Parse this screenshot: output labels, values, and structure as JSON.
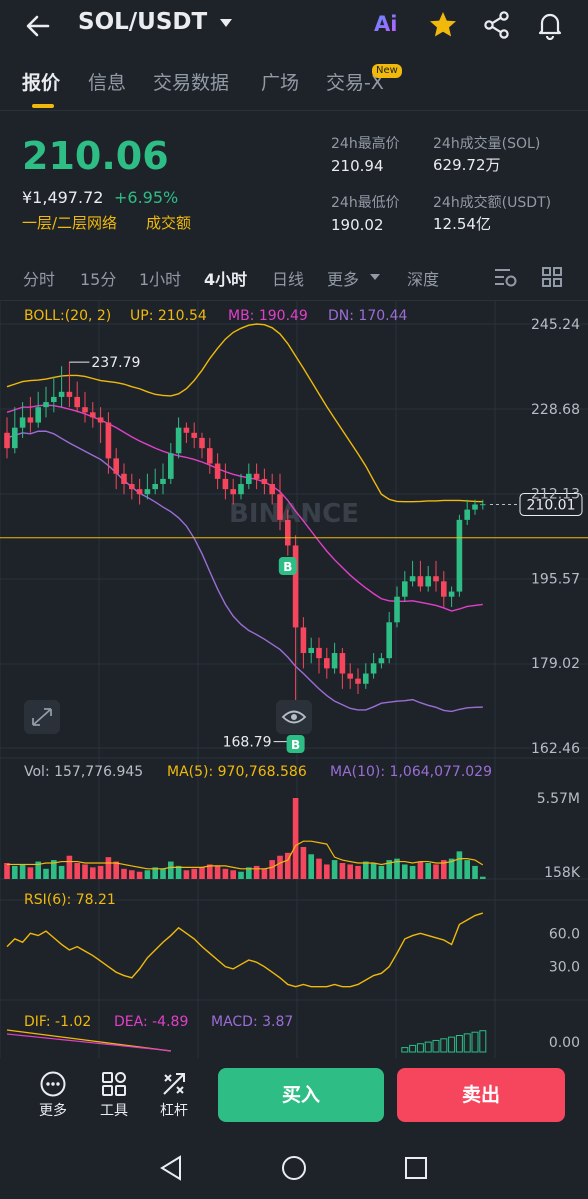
{
  "header": {
    "pair": "SOL/USDT",
    "ai_label": "Ai",
    "icons": [
      "back-arrow-icon",
      "chevron-down-icon",
      "ai-icon",
      "star-icon",
      "share-icon",
      "bell-icon"
    ]
  },
  "tabs": [
    {
      "label": "报价",
      "active": true
    },
    {
      "label": "信息"
    },
    {
      "label": "交易数据"
    },
    {
      "label": "广场"
    },
    {
      "label": "交易-X",
      "badge": "New"
    }
  ],
  "price": {
    "last": "210.06",
    "cny": "¥1,497.72",
    "change": "+6.95%",
    "grid_link": "一层/二层网络",
    "volume_link": "成交额"
  },
  "stats": {
    "high_label": "24h最高价",
    "high": "210.94",
    "low_label": "24h最低价",
    "low": "190.02",
    "vol_base_label": "24h成交量(SOL)",
    "vol_base": "629.72万",
    "vol_quote_label": "24h成交额(USDT)",
    "vol_quote": "12.54亿"
  },
  "intervals": {
    "items": [
      "分时",
      "15分",
      "1小时",
      "4小时",
      "日线",
      "更多",
      "深度"
    ],
    "active": "4小时"
  },
  "colors": {
    "up": "#2ebd85",
    "down": "#f6465d",
    "accent": "#f0b90b",
    "boll_mb": "#e040c8",
    "boll_band": "#f0b90b",
    "boll_dn": "#9b6dd6",
    "bg": "#1e2329"
  },
  "chart_data": [
    {
      "type": "candlestick",
      "title": "",
      "watermark": "BINANCE",
      "indicator": {
        "label": "BOLL:(20, 2)",
        "up": "UP: 210.54",
        "mb": "MB: 190.49",
        "dn": "DN: 170.44"
      },
      "y_ticks": [
        "245.24",
        "228.68",
        "212.13",
        "195.57",
        "179.02",
        "162.46"
      ],
      "ylim": [
        162.46,
        245.24
      ],
      "current_price": "210.01",
      "current_price_value": 210.01,
      "marked_level": 203.5,
      "high_label": "237.79",
      "low_label": "168.79",
      "trade_markers": [
        "B",
        "B"
      ],
      "candles": [
        [
          224,
          221,
          227,
          219
        ],
        [
          221,
          225,
          229,
          220
        ],
        [
          225,
          227,
          230,
          223
        ],
        [
          227,
          226,
          231,
          224
        ],
        [
          226,
          229,
          232,
          225
        ],
        [
          229,
          230,
          233,
          227
        ],
        [
          230,
          231,
          235,
          228
        ],
        [
          231,
          232,
          237,
          229
        ],
        [
          232,
          231,
          237.79,
          229
        ],
        [
          231,
          229,
          234,
          228
        ],
        [
          229,
          228,
          232,
          226
        ],
        [
          228,
          227,
          230,
          225
        ],
        [
          227,
          226,
          229,
          222
        ],
        [
          226,
          219,
          228,
          216
        ],
        [
          219,
          216,
          221,
          213
        ],
        [
          216,
          214,
          218,
          212
        ],
        [
          214,
          213,
          216,
          211
        ],
        [
          213,
          212,
          215,
          210
        ],
        [
          212,
          213,
          216,
          211
        ],
        [
          213,
          214,
          217,
          212
        ],
        [
          214,
          215,
          218,
          212
        ],
        [
          215,
          220,
          222,
          214
        ],
        [
          220,
          225,
          227,
          219
        ],
        [
          225,
          224,
          226,
          222
        ],
        [
          224,
          223,
          226,
          221
        ],
        [
          223,
          221,
          224,
          219
        ],
        [
          221,
          218,
          223,
          216
        ],
        [
          218,
          215,
          220,
          213
        ],
        [
          215,
          213,
          218,
          211
        ],
        [
          213,
          212,
          215,
          210
        ],
        [
          212,
          214,
          216,
          211
        ],
        [
          214,
          216,
          218,
          213
        ],
        [
          216,
          215,
          218,
          213
        ],
        [
          215,
          214,
          217,
          212
        ],
        [
          214,
          212,
          216,
          210
        ],
        [
          212,
          207,
          216,
          205
        ],
        [
          207,
          202,
          209,
          200
        ],
        [
          202,
          186,
          204,
          168.79
        ],
        [
          186,
          181,
          188,
          178
        ],
        [
          181,
          182,
          184,
          179
        ],
        [
          182,
          180,
          184,
          177
        ],
        [
          180,
          178,
          182,
          176
        ],
        [
          178,
          181,
          183,
          177
        ],
        [
          181,
          177,
          182,
          174
        ],
        [
          177,
          176,
          179,
          174
        ],
        [
          176,
          175,
          178,
          173
        ],
        [
          175,
          177,
          179,
          174
        ],
        [
          177,
          179,
          181,
          176
        ],
        [
          179,
          180,
          181,
          178
        ],
        [
          180,
          187,
          189,
          179
        ],
        [
          187,
          192,
          194,
          186
        ],
        [
          192,
          195,
          197,
          191
        ],
        [
          195,
          196,
          199,
          194
        ],
        [
          196,
          194,
          199,
          193
        ],
        [
          194,
          196,
          198,
          193
        ],
        [
          196,
          195,
          199,
          193
        ],
        [
          195,
          192,
          197,
          190
        ],
        [
          192,
          193,
          194,
          190
        ],
        [
          193,
          207,
          208,
          192
        ],
        [
          207,
          209,
          210.94,
          206
        ],
        [
          209,
          210,
          210.94,
          208
        ],
        [
          210,
          210.06,
          210.94,
          209
        ]
      ],
      "boll_mid": [
        228,
        228.5,
        229,
        229,
        229.3,
        229.4,
        229.3,
        229,
        228.6,
        228.2,
        227.7,
        227.1,
        226.5,
        225.8,
        225,
        224.1,
        223.2,
        222.4,
        221.7,
        221,
        220.4,
        219.9,
        219.5,
        219.2,
        218.8,
        218.3,
        217.7,
        217,
        216.4,
        215.9,
        215.5,
        215.2,
        214.9,
        214.4,
        213.6,
        212.5,
        210.8,
        208.7,
        206.8,
        204.8,
        202.8,
        200.9,
        199.2,
        197.7,
        196.2,
        194.9,
        193.7,
        192.6,
        191.6,
        191.2,
        191.1,
        191.1,
        191.2,
        190.9,
        190.6,
        190.3,
        189.8,
        189.2,
        189.6,
        190.1,
        190.3,
        190.49
      ],
      "boll_upper": [
        233,
        233.5,
        234,
        234.2,
        234.3,
        234.5,
        234.8,
        235.1,
        235.2,
        235.2,
        235,
        234.6,
        234.2,
        234,
        233.8,
        233.5,
        233,
        232.6,
        232,
        231.5,
        231.3,
        231.2,
        231.6,
        232.6,
        234.2,
        236.2,
        238.5,
        240.5,
        242.3,
        243.6,
        244.4,
        245,
        245.24,
        245.1,
        244.5,
        243.3,
        241.4,
        239,
        236.6,
        234.1,
        231.6,
        229.1,
        226.8,
        224.5,
        222.2,
        219.9,
        217.5,
        214.7,
        212,
        211,
        210.6,
        210.54,
        210.54,
        210.6,
        210.7,
        210.7,
        210.8,
        210.8,
        210.8,
        210.7,
        210.6,
        210.54
      ],
      "boll_lower": [
        223,
        223.5,
        224,
        223.8,
        224.3,
        224.3,
        223.8,
        222.9,
        222,
        221.2,
        220.4,
        219.6,
        218.8,
        217.6,
        216.2,
        214.7,
        213.4,
        212.2,
        211.4,
        210.5,
        209.5,
        208.6,
        207.4,
        205.8,
        203.4,
        200.4,
        196.9,
        193.5,
        190.5,
        188.2,
        186.6,
        185.4,
        184.6,
        183.7,
        182.7,
        181.7,
        180.2,
        178.4,
        177,
        175.5,
        174,
        172.7,
        171.6,
        170.9,
        170.2,
        169.9,
        169.9,
        170.5,
        171.2,
        171.4,
        171.6,
        171.7,
        171.9,
        171.3,
        170.8,
        170.4,
        169.8,
        169.6,
        170,
        170.3,
        170.4,
        170.44
      ]
    },
    {
      "type": "bar",
      "title": "",
      "indicator": {
        "vol": "Vol: 157,776.945",
        "ma5": "MA(5): 970,768.586",
        "ma10": "MA(10): 1,064,077.029"
      },
      "y_ticks": [
        "5.57M",
        "158K"
      ],
      "ylim": [
        0,
        5570000
      ],
      "values": [
        1100000,
        900000,
        1000000,
        800000,
        1200000,
        700000,
        1300000,
        900000,
        1600000,
        1100000,
        1000000,
        800000,
        900000,
        1500000,
        1200000,
        700000,
        600000,
        500000,
        600000,
        800000,
        700000,
        1200000,
        900000,
        600000,
        700000,
        800000,
        1000000,
        900000,
        700000,
        600000,
        500000,
        800000,
        900000,
        700000,
        1300000,
        1600000,
        1800000,
        5570000,
        2200000,
        1700000,
        1400000,
        1000000,
        1300000,
        1100000,
        1000000,
        900000,
        1200000,
        1100000,
        900000,
        1300000,
        1400000,
        1000000,
        900000,
        1200000,
        1100000,
        1000000,
        1300000,
        1400000,
        1900000,
        1300000,
        900000,
        157776
      ],
      "ma5": [
        1000000,
        1000000,
        1000000,
        1000000,
        1000000,
        1100000,
        1100000,
        1200000,
        1200000,
        1200000,
        1100000,
        1100000,
        1100000,
        1100000,
        1100000,
        1000000,
        900000,
        800000,
        700000,
        700000,
        700000,
        800000,
        800000,
        800000,
        800000,
        800000,
        900000,
        900000,
        900000,
        800000,
        700000,
        700000,
        700000,
        700000,
        800000,
        1100000,
        1300000,
        2300000,
        2600000,
        2600000,
        2500000,
        2400000,
        1500000,
        1300000,
        1200000,
        1100000,
        1100000,
        1100000,
        1000000,
        1100000,
        1200000,
        1200000,
        1100000,
        1200000,
        1200000,
        1100000,
        1100000,
        1200000,
        1400000,
        1400000,
        1300000,
        970768
      ]
    },
    {
      "type": "line",
      "title": "",
      "indicator": {
        "rsi": "RSI(6): 78.21"
      },
      "y_ticks": [
        "60.0",
        "30.0"
      ],
      "ylim": [
        0,
        90
      ],
      "values": [
        48,
        55,
        52,
        60,
        58,
        62,
        56,
        50,
        45,
        48,
        44,
        40,
        35,
        30,
        25,
        22,
        20,
        28,
        38,
        45,
        52,
        58,
        65,
        60,
        55,
        48,
        42,
        36,
        30,
        28,
        32,
        36,
        34,
        30,
        25,
        20,
        14,
        12,
        14,
        12,
        12,
        12,
        14,
        12,
        12,
        14,
        18,
        22,
        24,
        30,
        42,
        55,
        58,
        60,
        58,
        56,
        54,
        50,
        68,
        72,
        76,
        78.21
      ]
    },
    {
      "type": "bar",
      "title": "",
      "indicator": {
        "dif": "DIF: -1.02",
        "dea": "DEA: -4.89",
        "macd": "MACD: 3.87"
      },
      "y_ticks": [
        "0.00"
      ],
      "macd_last": [
        0.8,
        1.2,
        1.5,
        1.8,
        2.1,
        2.4,
        2.7,
        3.0,
        3.3,
        3.6,
        3.87
      ]
    }
  ],
  "toolbar": {
    "more": "更多",
    "tools": "工具",
    "leverage": "杠杆",
    "buy": "买入",
    "sell": "卖出"
  }
}
